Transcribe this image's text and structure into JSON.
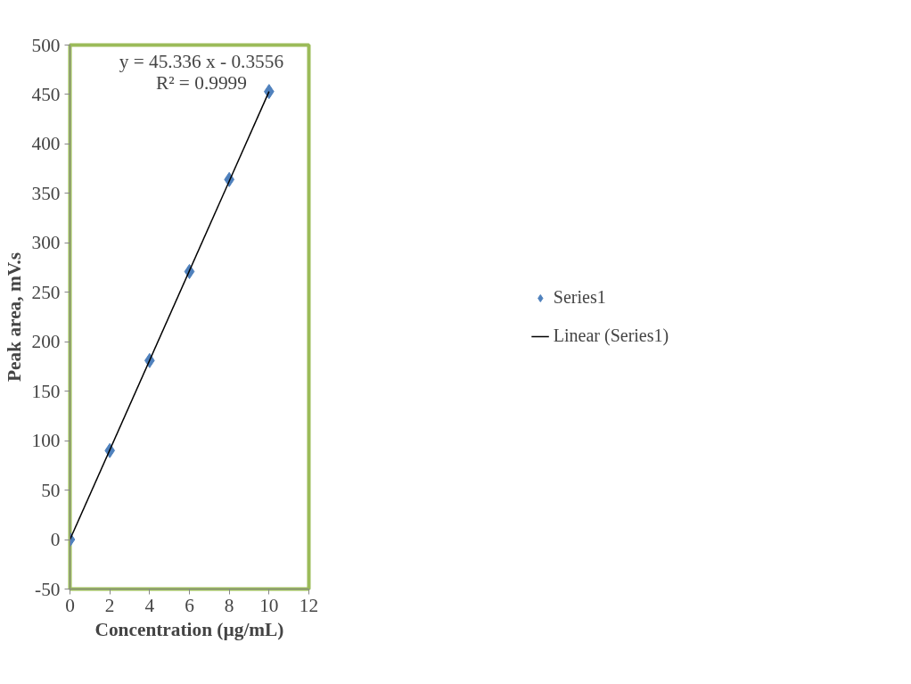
{
  "chart_data": {
    "type": "scatter",
    "xlabel": "Concentration (µg/mL)",
    "ylabel": "Peak area, mV.s",
    "series": [
      {
        "name": "Series1",
        "color": "#4f81bd",
        "marker": "diamond",
        "x": [
          0,
          2,
          4,
          6,
          8,
          10
        ],
        "values": [
          0,
          90,
          181,
          271,
          364,
          453
        ]
      },
      {
        "name": "Linear (Series1)",
        "type": "line",
        "color": "#000000",
        "marker": "none",
        "line_style": "solid",
        "x": [
          0,
          10
        ],
        "values": [
          0,
          453
        ]
      }
    ],
    "annotations": [
      "y = 45.336 x - 0.3556",
      "R² = 0.9999"
    ],
    "xlim": [
      0,
      12
    ],
    "xticks": [
      0,
      2,
      4,
      6,
      8,
      10,
      12
    ],
    "ylim": [
      -50,
      500
    ],
    "yticks": [
      -50,
      0,
      50,
      100,
      150,
      200,
      250,
      300,
      350,
      400,
      450,
      500
    ],
    "grid": false,
    "legend": "right"
  }
}
